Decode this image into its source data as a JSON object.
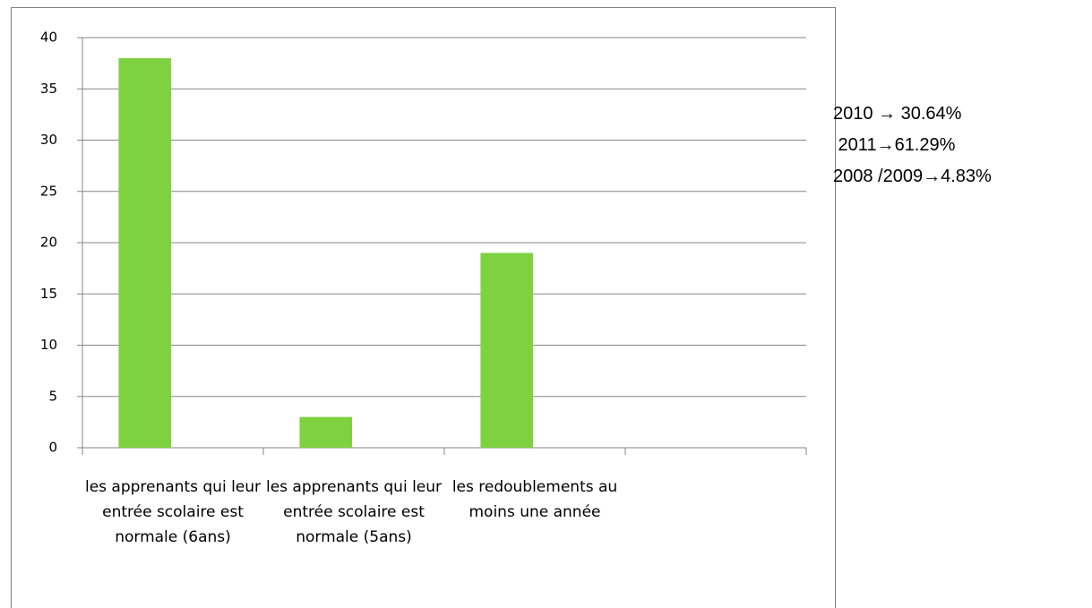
{
  "chart_data": {
    "type": "bar",
    "categories": [
      "les apprenants qui leur entrée scolaire est normale (6ans)",
      "les apprenants qui leur entrée scolaire est normale (5ans)",
      "les redoublements au moins une année",
      null
    ],
    "values": [
      38,
      3,
      19,
      null
    ],
    "color": "#7ed13f",
    "ylim": [
      0,
      40
    ],
    "yticks": [
      0,
      5,
      10,
      15,
      20,
      25,
      30,
      35,
      40
    ],
    "grid": true,
    "annotations": [
      "2010 → 30.64%",
      " 2011→61.29%",
      "2008 /2009→4.83%"
    ]
  }
}
